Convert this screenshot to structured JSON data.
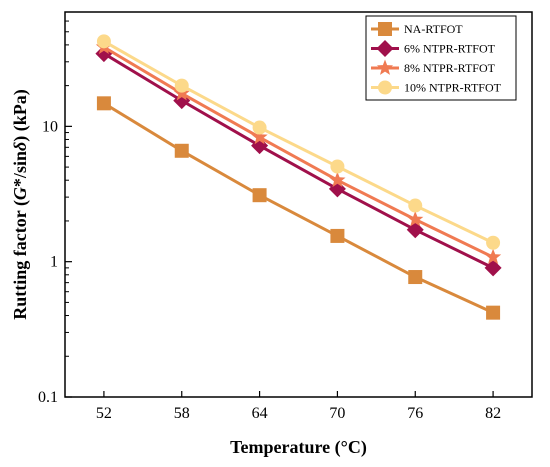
{
  "chart_data": {
    "type": "line",
    "x": [
      52,
      58,
      64,
      70,
      76,
      82
    ],
    "x_ticks": [
      "52",
      "58",
      "64",
      "70",
      "76",
      "82"
    ],
    "xlabel": "Temperature (°C)",
    "ylabel": "Rutting factor (G*/sinδ) (kPa)",
    "ylabel_parts": [
      "Rutting factor (",
      "G",
      "*/sin",
      "δ",
      ") (kPa)"
    ],
    "yscale": "log",
    "ylim": [
      0.1,
      70
    ],
    "xlim": [
      49,
      85
    ],
    "y_ticks": [
      0.1,
      1,
      10
    ],
    "y_tick_labels": [
      "0.1",
      "1",
      "10"
    ],
    "legend_position": "top-right",
    "series": [
      {
        "name": "NA-RTFOT",
        "color": "#d9893c",
        "marker": "square",
        "values": [
          14.8,
          6.6,
          3.1,
          1.55,
          0.77,
          0.42
        ]
      },
      {
        "name": "6% NTPR-RTFOT",
        "color": "#a0104b",
        "marker": "diamond",
        "values": [
          34.5,
          15.5,
          7.2,
          3.45,
          1.72,
          0.9
        ]
      },
      {
        "name": "8% NTPR-RTFOT",
        "color": "#f07a52",
        "marker": "star",
        "values": [
          38.5,
          17.5,
          8.3,
          4.0,
          2.05,
          1.08
        ]
      },
      {
        "name": "10% NTPR-RTFOT",
        "color": "#fcd98a",
        "marker": "circle",
        "values": [
          42.5,
          20.0,
          9.8,
          5.05,
          2.6,
          1.38
        ]
      }
    ]
  }
}
